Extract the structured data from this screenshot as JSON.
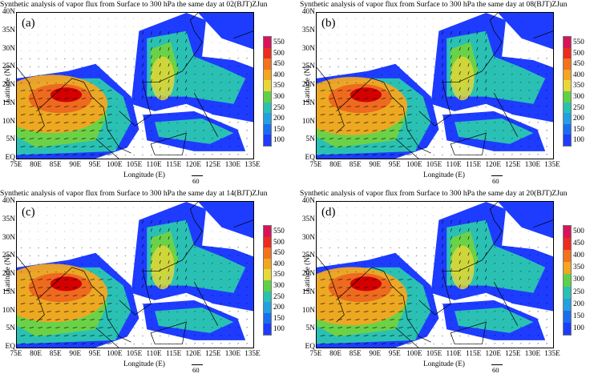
{
  "figure": {
    "title_prefix": "Synthetic analysis of vapor flux from Surface to 300 hPa the same day at",
    "xlabel": "Longitude (E)",
    "ylabel": "Latitude (N)",
    "xticks": [
      "75E",
      "80E",
      "85E",
      "90E",
      "95E",
      "100E",
      "105E",
      "110E",
      "115E",
      "120E",
      "125E",
      "130E",
      "135E"
    ],
    "yticks": [
      "40N",
      "35N",
      "30N",
      "25N",
      "20N",
      "15N",
      "10N",
      "5N",
      "EQ"
    ],
    "reference_vector": "60",
    "colors": {
      "flux_low": "#1e3cff",
      "flux_high": "#d40000",
      "land_outline": "#000000"
    }
  },
  "panels": [
    {
      "label": "(a)",
      "title": "Synthetic analysis of vapor flux from Surface to 300 hPa the same day at 02(BJT)ZJun",
      "colorbar": [
        "550",
        "500",
        "450",
        "400",
        "350",
        "300",
        "250",
        "200",
        "150",
        "100"
      ]
    },
    {
      "label": "(b)",
      "title": "Synthetic analysis of vapor flux from Surface to 300 hPa the same day at 08(BJT)ZJun",
      "colorbar": [
        "550",
        "500",
        "450",
        "400",
        "350",
        "300",
        "250",
        "200",
        "150",
        "100"
      ]
    },
    {
      "label": "(c)",
      "title": "Synthetic analysis of vapor flux from Surface to 300 hPa the same day at 14(BJT)ZJun",
      "colorbar": [
        "550",
        "500",
        "450",
        "400",
        "350",
        "300",
        "250",
        "200",
        "150",
        "100"
      ]
    },
    {
      "label": "(d)",
      "title": "Synthetic analysis of vapor flux from Surface to 300 hPa the same day at 20(BJT)ZJun",
      "colorbar": [
        "500",
        "450",
        "400",
        "350",
        "300",
        "250",
        "200",
        "150",
        "100"
      ]
    }
  ]
}
